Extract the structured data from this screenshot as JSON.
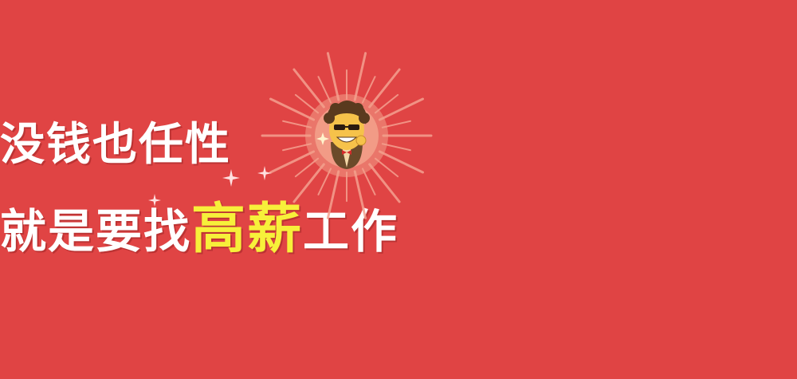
{
  "banner": {
    "background_color": "#e04444",
    "headline_line1": "没钱也任性",
    "headline_line2_prefix": "就是要找",
    "headline_line2_highlight": "高薪",
    "headline_line2_suffix": "工作",
    "highlight_color": "#f7f03a",
    "text_color": "#ffffff"
  },
  "mascot": {
    "icon": "cool-mascot-with-sunglasses-icon",
    "burst_icon": "sunburst-icon",
    "sparkle_icon": "sparkle-icon"
  }
}
